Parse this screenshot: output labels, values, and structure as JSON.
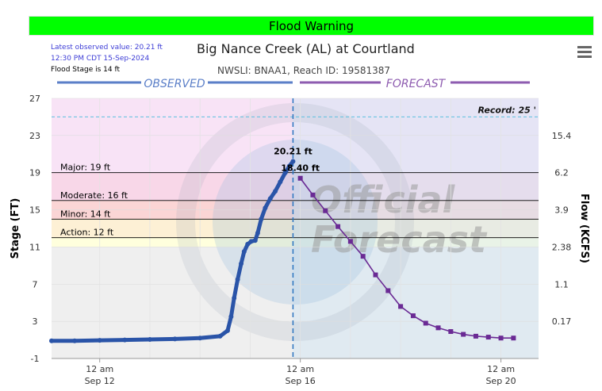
{
  "banner": {
    "label": "Flood Warning",
    "color": "#00ff00"
  },
  "observation": {
    "latest": "Latest observed value: 20.21 ft",
    "time": "12:30 PM CDT 15-Sep-2024",
    "flood_stage": "Flood Stage is 14 ft"
  },
  "header": {
    "title": "Big Nance Creek (AL) at Courtland",
    "subtitle": "NWSLI: BNAA1, Reach ID: 19581387"
  },
  "menu": {
    "icon": "hamburger-menu-icon"
  },
  "watermark": {
    "line1": "Official",
    "line2": "Forecast"
  },
  "chart_data": {
    "type": "line",
    "title": "Big Nance Creek (AL) at Courtland",
    "ylabel": "Stage (FT)",
    "y2label": "Flow (KCFS)",
    "ylim": [
      -1,
      27
    ],
    "y_ticks": [
      27,
      23,
      19,
      15,
      11,
      7,
      3,
      -1
    ],
    "flow_ticks": [
      {
        "stage": 23,
        "label": "15.4"
      },
      {
        "stage": 19,
        "label": "6.2"
      },
      {
        "stage": 15,
        "label": "3.9"
      },
      {
        "stage": 11,
        "label": "2.38"
      },
      {
        "stage": 7,
        "label": "1.1"
      },
      {
        "stage": 3,
        "label": "0.17"
      }
    ],
    "x_ticks": [
      {
        "day": 12.0,
        "line1": "12 am",
        "line2": "Sep 12"
      },
      {
        "day": 16.0,
        "line1": "12 am",
        "line2": "Sep 16"
      },
      {
        "day": 20.0,
        "line1": "12 am",
        "line2": "Sep 20"
      }
    ],
    "x_gridlines": [
      12.0,
      13.0,
      14.0,
      15.0,
      16.0,
      17.0,
      18.0,
      19.0,
      20.0
    ],
    "xlim": [
      11.04,
      20.75
    ],
    "sections": {
      "observed": "OBSERVED",
      "forecast": "FORECAST"
    },
    "now_day": 15.854,
    "record": {
      "label": "Record: 25 '",
      "value": 25
    },
    "thresholds": [
      {
        "name": "Major",
        "label": "Major: 19 ft",
        "value": 19,
        "color": "#f8d7e8"
      },
      {
        "name": "Moderate",
        "label": "Moderate: 16 ft",
        "value": 16,
        "color": "#fbd5d5"
      },
      {
        "name": "Minor",
        "label": "Minor: 14 ft",
        "value": 14,
        "color": "#fdf0d5"
      },
      {
        "name": "Action",
        "label": "Action: 12 ft",
        "value": 12,
        "color": "#ffffdd"
      }
    ],
    "band_colors": {
      "record": "#f8e3f6",
      "normal": "#efefef",
      "forecast_tint": "#cfe4f5"
    },
    "series": [
      {
        "name": "Observed",
        "color": "#2a54a8",
        "x": [
          11.04,
          11.5,
          12.0,
          12.5,
          13.0,
          13.5,
          14.0,
          14.4,
          14.55,
          14.62,
          14.68,
          14.75,
          14.82,
          14.88,
          14.95,
          15.02,
          15.1,
          15.15,
          15.22,
          15.3,
          15.4,
          15.5,
          15.6,
          15.7,
          15.78,
          15.854
        ],
        "values": [
          0.9,
          0.9,
          0.95,
          1.0,
          1.05,
          1.1,
          1.2,
          1.4,
          2.0,
          3.5,
          5.5,
          7.5,
          9.2,
          10.5,
          11.3,
          11.6,
          11.7,
          12.5,
          14.0,
          15.2,
          16.2,
          17.0,
          18.0,
          19.0,
          19.7,
          20.21
        ],
        "end_label": "20.21 ft"
      },
      {
        "name": "Forecast",
        "color": "#6a2a94",
        "x": [
          16.0,
          16.25,
          16.5,
          16.75,
          17.0,
          17.25,
          17.5,
          17.75,
          18.0,
          18.25,
          18.5,
          18.75,
          19.0,
          19.25,
          19.5,
          19.75,
          20.0,
          20.25
        ],
        "values": [
          18.4,
          16.6,
          14.9,
          13.2,
          11.6,
          10.0,
          8.0,
          6.3,
          4.6,
          3.6,
          2.8,
          2.3,
          1.9,
          1.6,
          1.4,
          1.3,
          1.2,
          1.2
        ],
        "start_label": "18.40 ft"
      }
    ]
  }
}
